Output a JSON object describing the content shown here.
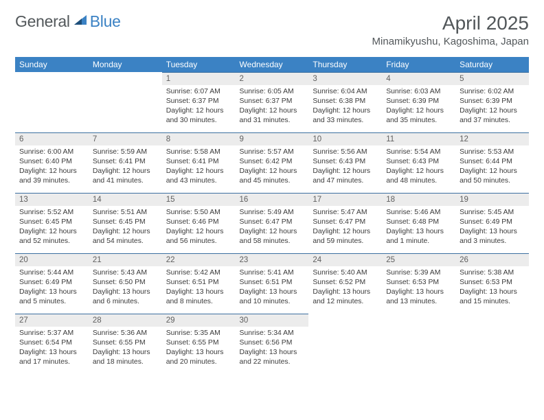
{
  "brand": {
    "general": "General",
    "blue": "Blue"
  },
  "title": "April 2025",
  "location": "Minamikyushu, Kagoshima, Japan",
  "colors": {
    "header_bg": "#3b82c4",
    "header_fg": "#ffffff",
    "daynum_bg": "#ececec",
    "rule": "#3b6fa0",
    "text": "#3a3a3a",
    "brand_gray": "#52575a",
    "brand_blue": "#3b82c4"
  },
  "day_headers": [
    "Sunday",
    "Monday",
    "Tuesday",
    "Wednesday",
    "Thursday",
    "Friday",
    "Saturday"
  ],
  "weeks": [
    [
      null,
      null,
      {
        "n": "1",
        "r": "6:07 AM",
        "s": "6:37 PM",
        "d": "12 hours and 30 minutes."
      },
      {
        "n": "2",
        "r": "6:05 AM",
        "s": "6:37 PM",
        "d": "12 hours and 31 minutes."
      },
      {
        "n": "3",
        "r": "6:04 AM",
        "s": "6:38 PM",
        "d": "12 hours and 33 minutes."
      },
      {
        "n": "4",
        "r": "6:03 AM",
        "s": "6:39 PM",
        "d": "12 hours and 35 minutes."
      },
      {
        "n": "5",
        "r": "6:02 AM",
        "s": "6:39 PM",
        "d": "12 hours and 37 minutes."
      }
    ],
    [
      {
        "n": "6",
        "r": "6:00 AM",
        "s": "6:40 PM",
        "d": "12 hours and 39 minutes."
      },
      {
        "n": "7",
        "r": "5:59 AM",
        "s": "6:41 PM",
        "d": "12 hours and 41 minutes."
      },
      {
        "n": "8",
        "r": "5:58 AM",
        "s": "6:41 PM",
        "d": "12 hours and 43 minutes."
      },
      {
        "n": "9",
        "r": "5:57 AM",
        "s": "6:42 PM",
        "d": "12 hours and 45 minutes."
      },
      {
        "n": "10",
        "r": "5:56 AM",
        "s": "6:43 PM",
        "d": "12 hours and 47 minutes."
      },
      {
        "n": "11",
        "r": "5:54 AM",
        "s": "6:43 PM",
        "d": "12 hours and 48 minutes."
      },
      {
        "n": "12",
        "r": "5:53 AM",
        "s": "6:44 PM",
        "d": "12 hours and 50 minutes."
      }
    ],
    [
      {
        "n": "13",
        "r": "5:52 AM",
        "s": "6:45 PM",
        "d": "12 hours and 52 minutes."
      },
      {
        "n": "14",
        "r": "5:51 AM",
        "s": "6:45 PM",
        "d": "12 hours and 54 minutes."
      },
      {
        "n": "15",
        "r": "5:50 AM",
        "s": "6:46 PM",
        "d": "12 hours and 56 minutes."
      },
      {
        "n": "16",
        "r": "5:49 AM",
        "s": "6:47 PM",
        "d": "12 hours and 58 minutes."
      },
      {
        "n": "17",
        "r": "5:47 AM",
        "s": "6:47 PM",
        "d": "12 hours and 59 minutes."
      },
      {
        "n": "18",
        "r": "5:46 AM",
        "s": "6:48 PM",
        "d": "13 hours and 1 minute."
      },
      {
        "n": "19",
        "r": "5:45 AM",
        "s": "6:49 PM",
        "d": "13 hours and 3 minutes."
      }
    ],
    [
      {
        "n": "20",
        "r": "5:44 AM",
        "s": "6:49 PM",
        "d": "13 hours and 5 minutes."
      },
      {
        "n": "21",
        "r": "5:43 AM",
        "s": "6:50 PM",
        "d": "13 hours and 6 minutes."
      },
      {
        "n": "22",
        "r": "5:42 AM",
        "s": "6:51 PM",
        "d": "13 hours and 8 minutes."
      },
      {
        "n": "23",
        "r": "5:41 AM",
        "s": "6:51 PM",
        "d": "13 hours and 10 minutes."
      },
      {
        "n": "24",
        "r": "5:40 AM",
        "s": "6:52 PM",
        "d": "13 hours and 12 minutes."
      },
      {
        "n": "25",
        "r": "5:39 AM",
        "s": "6:53 PM",
        "d": "13 hours and 13 minutes."
      },
      {
        "n": "26",
        "r": "5:38 AM",
        "s": "6:53 PM",
        "d": "13 hours and 15 minutes."
      }
    ],
    [
      {
        "n": "27",
        "r": "5:37 AM",
        "s": "6:54 PM",
        "d": "13 hours and 17 minutes."
      },
      {
        "n": "28",
        "r": "5:36 AM",
        "s": "6:55 PM",
        "d": "13 hours and 18 minutes."
      },
      {
        "n": "29",
        "r": "5:35 AM",
        "s": "6:55 PM",
        "d": "13 hours and 20 minutes."
      },
      {
        "n": "30",
        "r": "5:34 AM",
        "s": "6:56 PM",
        "d": "13 hours and 22 minutes."
      },
      null,
      null,
      null
    ]
  ],
  "labels": {
    "sunrise": "Sunrise:",
    "sunset": "Sunset:",
    "daylight": "Daylight:"
  }
}
